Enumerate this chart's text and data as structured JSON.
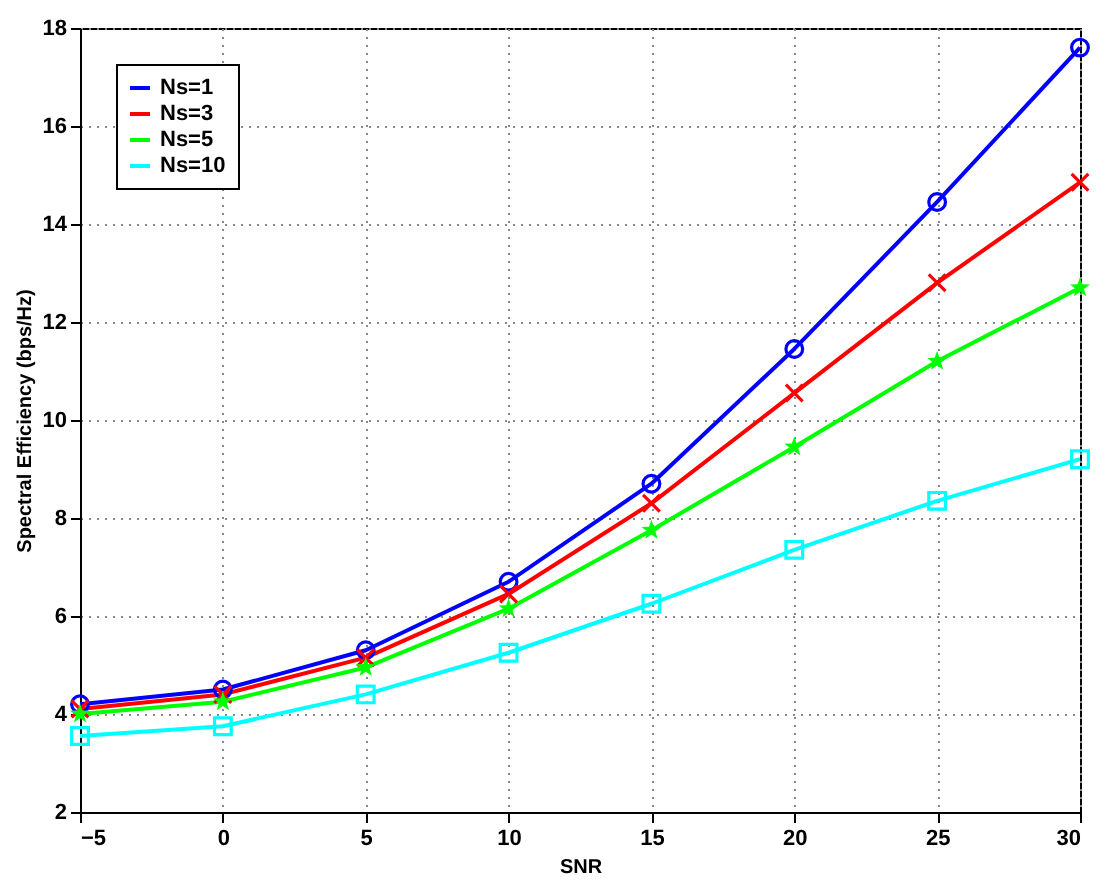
{
  "chart_data": {
    "type": "line",
    "xlabel": "SNR",
    "ylabel": "Spectral Efficiency (bps/Hz)",
    "x": [
      -5,
      0,
      5,
      10,
      15,
      20,
      25,
      30
    ],
    "series": [
      {
        "name": "Ns=1",
        "color": "#0000ff",
        "marker": "circle",
        "values": [
          4.2,
          4.5,
          5.3,
          6.7,
          8.7,
          11.45,
          14.45,
          17.6
        ]
      },
      {
        "name": "Ns=3",
        "color": "#ff0000",
        "marker": "cross",
        "values": [
          4.1,
          4.4,
          5.15,
          6.45,
          8.3,
          10.55,
          12.8,
          14.85
        ]
      },
      {
        "name": "Ns=5",
        "color": "#00ff00",
        "marker": "star",
        "values": [
          4.0,
          4.25,
          4.95,
          6.15,
          7.75,
          9.45,
          11.2,
          12.7
        ]
      },
      {
        "name": "Ns=10",
        "color": "#00ffff",
        "marker": "square",
        "values": [
          3.55,
          3.75,
          4.4,
          5.25,
          6.25,
          7.35,
          8.35,
          9.2
        ]
      }
    ],
    "xlim": [
      -5,
      30
    ],
    "xticks": [
      -5,
      0,
      5,
      10,
      15,
      20,
      25,
      30
    ],
    "ylim": [
      2,
      18
    ],
    "yticks": [
      2,
      4,
      6,
      8,
      10,
      12,
      14,
      16,
      18
    ],
    "grid": true,
    "legend": "top left",
    "line_style": "solid"
  }
}
